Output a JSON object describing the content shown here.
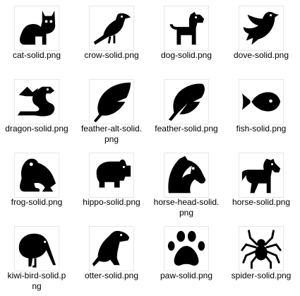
{
  "files": [
    {
      "icon": "cat-icon",
      "label": [
        "cat-solid.png"
      ]
    },
    {
      "icon": "crow-icon",
      "label": [
        "crow-solid.png"
      ]
    },
    {
      "icon": "dog-icon",
      "label": [
        "dog-solid.png"
      ]
    },
    {
      "icon": "dove-icon",
      "label": [
        "dove-solid.png"
      ]
    },
    {
      "icon": "dragon-icon",
      "label": [
        "dragon-solid.png"
      ]
    },
    {
      "icon": "feather-alt-icon",
      "label": [
        "feather-alt-solid.",
        "png"
      ]
    },
    {
      "icon": "feather-icon",
      "label": [
        "feather-solid.png"
      ]
    },
    {
      "icon": "fish-icon",
      "label": [
        "fish-solid.png"
      ]
    },
    {
      "icon": "frog-icon",
      "label": [
        "frog-solid.png"
      ]
    },
    {
      "icon": "hippo-icon",
      "label": [
        "hippo-solid.png"
      ]
    },
    {
      "icon": "horse-head-icon",
      "label": [
        "horse-head-solid.",
        "png"
      ]
    },
    {
      "icon": "horse-icon",
      "label": [
        "horse-solid.png"
      ]
    },
    {
      "icon": "kiwi-bird-icon",
      "label": [
        "kiwi-bird-solid.p",
        "ng"
      ]
    },
    {
      "icon": "otter-icon",
      "label": [
        "otter-solid.png"
      ]
    },
    {
      "icon": "paw-icon",
      "label": [
        "paw-solid.png"
      ]
    },
    {
      "icon": "spider-icon",
      "label": [
        "spider-solid.png"
      ]
    }
  ]
}
